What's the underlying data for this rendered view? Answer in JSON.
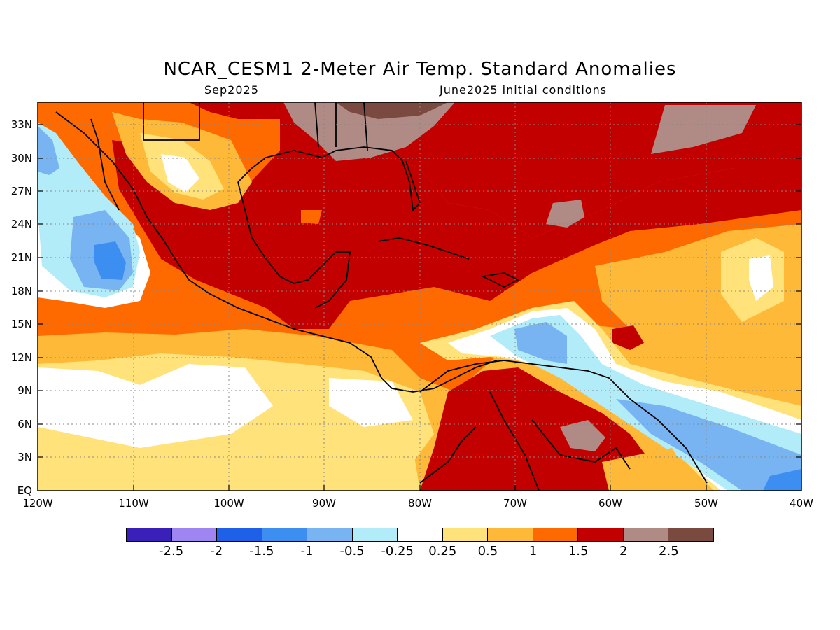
{
  "header": {
    "title": "NCAR_CESM1 2-Meter Air Temp. Standard Anomalies",
    "valid_month": "Sep2025",
    "initial_conditions": "June2025 initial conditions"
  },
  "axes": {
    "lat_labels": [
      "33N",
      "30N",
      "27N",
      "24N",
      "21N",
      "18N",
      "15N",
      "12N",
      "9N",
      "6N",
      "3N",
      "EQ"
    ],
    "lon_labels": [
      "120W",
      "110W",
      "100W",
      "90W",
      "80W",
      "70W",
      "60W",
      "50W",
      "40W"
    ]
  },
  "colorbar": {
    "colors": [
      "#3a1fb8",
      "#9f85f2",
      "#1f60e8",
      "#3c8ff0",
      "#78b4f2",
      "#b2ecf8",
      "#ffffff",
      "#ffe37a",
      "#ffb938",
      "#ff6a00",
      "#c20000",
      "#b08a84",
      "#7a4a40"
    ],
    "labels": [
      "-2.5",
      "-2",
      "-1.5",
      "-1",
      "-0.5",
      "-0.25",
      "0.25",
      "0.5",
      "1",
      "1.5",
      "2",
      "2.5"
    ]
  }
}
